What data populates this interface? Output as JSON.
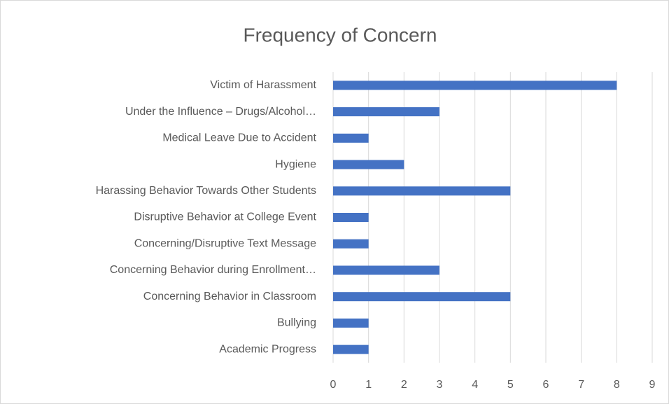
{
  "chart_data": {
    "type": "bar",
    "horizontal": true,
    "title": "Frequency of Concern",
    "categories": [
      "Victim of Harassment",
      "Under the Influence – Drugs/Alcohol…",
      "Medical Leave Due to Accident",
      "Hygiene",
      "Harassing Behavior Towards Other Students",
      "Disruptive Behavior at College Event",
      "Concerning/Disruptive Text Message",
      "Concerning Behavior during Enrollment…",
      "Concerning Behavior in Classroom",
      "Bullying",
      "Academic Progress"
    ],
    "values": [
      8,
      3,
      1,
      2,
      5,
      1,
      1,
      3,
      5,
      1,
      1
    ],
    "color": "#4472c4",
    "xlim": [
      0,
      9
    ],
    "xticks": [
      0,
      1,
      2,
      3,
      4,
      5,
      6,
      7,
      8,
      9
    ],
    "grid": true
  }
}
